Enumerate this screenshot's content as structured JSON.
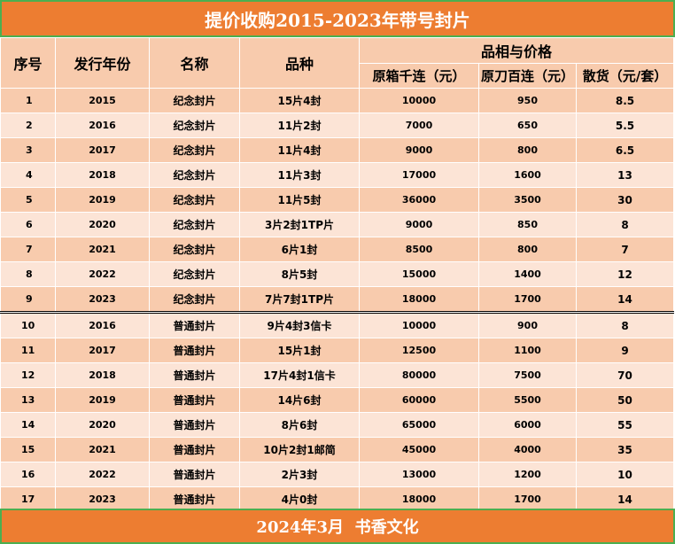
{
  "title": "提价收购2015-2023年带号封片",
  "headers": {
    "seq": "序号",
    "year": "发行年份",
    "name": "名称",
    "variety": "品种",
    "group": "品相与价格",
    "box": "原箱千连（元）",
    "knife": "原刀百连（元）",
    "loose": "散货（元/套）"
  },
  "rows": [
    {
      "seq": "1",
      "year": "2015",
      "name": "纪念封片",
      "variety": "15片4封",
      "box": "10000",
      "knife": "950",
      "loose": "8.5"
    },
    {
      "seq": "2",
      "year": "2016",
      "name": "纪念封片",
      "variety": "11片2封",
      "box": "7000",
      "knife": "650",
      "loose": "5.5"
    },
    {
      "seq": "3",
      "year": "2017",
      "name": "纪念封片",
      "variety": "11片4封",
      "box": "9000",
      "knife": "800",
      "loose": "6.5"
    },
    {
      "seq": "4",
      "year": "2018",
      "name": "纪念封片",
      "variety": "11片3封",
      "box": "17000",
      "knife": "1600",
      "loose": "13"
    },
    {
      "seq": "5",
      "year": "2019",
      "name": "纪念封片",
      "variety": "11片5封",
      "box": "36000",
      "knife": "3500",
      "loose": "30"
    },
    {
      "seq": "6",
      "year": "2020",
      "name": "纪念封片",
      "variety": "3片2封1TP片",
      "box": "9000",
      "knife": "850",
      "loose": "8"
    },
    {
      "seq": "7",
      "year": "2021",
      "name": "纪念封片",
      "variety": "6片1封",
      "box": "8500",
      "knife": "800",
      "loose": "7"
    },
    {
      "seq": "8",
      "year": "2022",
      "name": "纪念封片",
      "variety": "8片5封",
      "box": "15000",
      "knife": "1400",
      "loose": "12"
    },
    {
      "seq": "9",
      "year": "2023",
      "name": "纪念封片",
      "variety": "7片7封1TP片",
      "box": "18000",
      "knife": "1700",
      "loose": "14"
    },
    {
      "seq": "10",
      "year": "2016",
      "name": "普通封片",
      "variety": "9片4封3信卡",
      "box": "10000",
      "knife": "900",
      "loose": "8"
    },
    {
      "seq": "11",
      "year": "2017",
      "name": "普通封片",
      "variety": "15片1封",
      "box": "12500",
      "knife": "1100",
      "loose": "9"
    },
    {
      "seq": "12",
      "year": "2018",
      "name": "普通封片",
      "variety": "17片4封1信卡",
      "box": "80000",
      "knife": "7500",
      "loose": "70"
    },
    {
      "seq": "13",
      "year": "2019",
      "name": "普通封片",
      "variety": "14片6封",
      "box": "60000",
      "knife": "5500",
      "loose": "50"
    },
    {
      "seq": "14",
      "year": "2020",
      "name": "普通封片",
      "variety": "8片6封",
      "box": "65000",
      "knife": "6000",
      "loose": "55"
    },
    {
      "seq": "15",
      "year": "2021",
      "name": "普通封片",
      "variety": "10片2封1邮简",
      "box": "45000",
      "knife": "4000",
      "loose": "35"
    },
    {
      "seq": "16",
      "year": "2022",
      "name": "普通封片",
      "variety": "2片3封",
      "box": "13000",
      "knife": "1200",
      "loose": "10"
    },
    {
      "seq": "17",
      "year": "2023",
      "name": "普通封片",
      "variety": "4片0封",
      "box": "18000",
      "knife": "1700",
      "loose": "14"
    }
  ],
  "footer": "2024年3月  书香文化",
  "colors": {
    "banner": "#ed7d31",
    "banner_border": "#4caf50",
    "row_dark": "#f8cbad",
    "row_light": "#fce4d6"
  }
}
